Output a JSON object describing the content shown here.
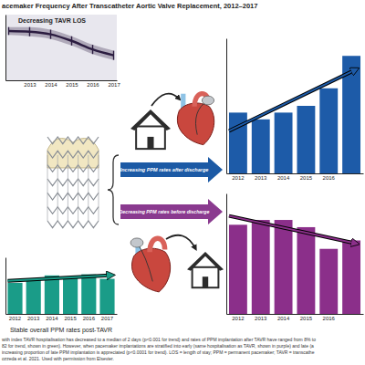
{
  "header": {
    "title": "acemaker Frequency After Transcatheter Aortic Valve Replacement, 2012–2017"
  },
  "chart_data": [
    {
      "type": "line",
      "title": "Decreasing TAVR LOS",
      "categories": [
        null,
        "2013",
        "2014",
        "2015",
        "2016",
        "2017"
      ],
      "values": [
        75,
        74,
        70,
        60,
        47,
        38
      ],
      "error": [
        6,
        7,
        7,
        7,
        7,
        7
      ],
      "color": "#2b1c40",
      "ylim": [
        0,
        100
      ],
      "tick_labels": "x"
    },
    {
      "type": "bar",
      "categories": [
        "2012",
        "2013",
        "2014",
        "2015",
        "2016",
        null
      ],
      "values": [
        45,
        40,
        45,
        50,
        63,
        87
      ],
      "color": "#1d5ba8",
      "ylim": [
        0,
        100
      ],
      "tick_labels": "x"
    },
    {
      "type": "bar",
      "title": "Stable overall PPM rates post-TAVR",
      "categories": [
        "2012",
        "2013",
        "2014",
        "2015",
        "2016",
        "2017"
      ],
      "values": [
        55,
        60,
        68,
        66,
        70,
        62
      ],
      "color": "#1a9c88",
      "ylim": [
        0,
        100
      ],
      "tick_labels": "x"
    },
    {
      "type": "bar",
      "categories": [
        "2012",
        "2013",
        "2014",
        "2015",
        "2016",
        null
      ],
      "values": [
        74,
        78,
        78,
        72,
        54,
        61
      ],
      "color": "#8b2f8a",
      "ylim": [
        0,
        100
      ],
      "tick_labels": "x"
    }
  ],
  "arrows": [
    {
      "text": "Increasing PPM rates after discharge",
      "color": "#1c5aa5"
    },
    {
      "text": "Decreasing PPM rates before discharge",
      "color": "#8a3a8f"
    }
  ],
  "caption": [
    "with index TAVR hospitalisation has decreased to a median of 2 days (p<0.001 for trend) and rates of PPM implantation after TAVR have ranged from 8% to",
    "82 for trend, shown in green). However, when pacemaker implantations are stratified into early (same hospitalisation as TAVR, shown in purple) and late (a",
    "increasing proportion of late PPM implantation is appreciated (p<0.0001 for trend). LOS = length of stay; PPM = permanent pacemaker; TAVR = transcathe",
    "ozzeda et al. 2021. Used with permission from Elsevier."
  ]
}
